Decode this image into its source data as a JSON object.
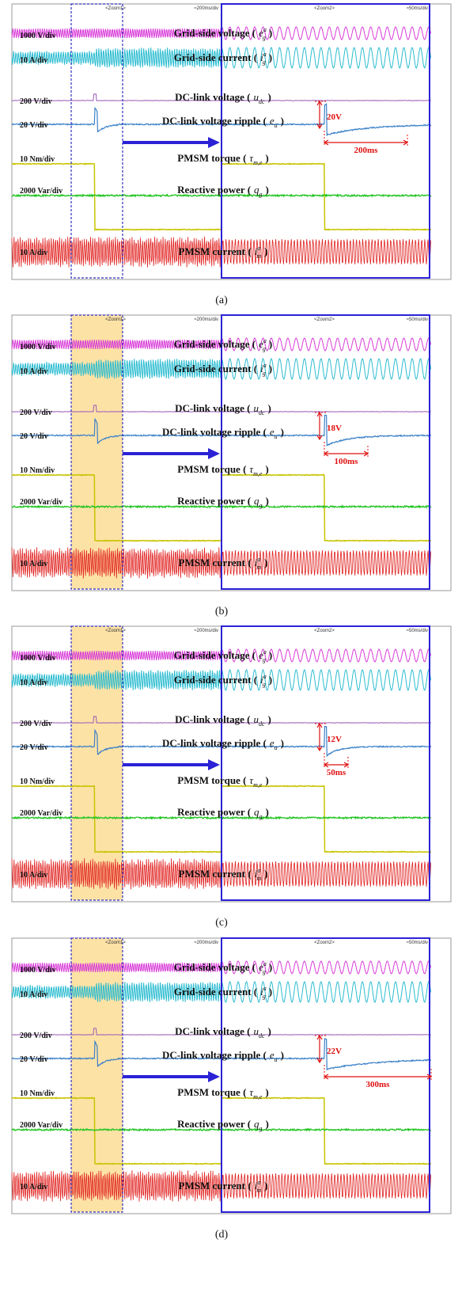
{
  "channels": [
    {
      "scale": "1000 V/div",
      "name": "Grid-side voltage (",
      "symbol": "e",
      "sub": "g",
      "sup": "a",
      "close": ")"
    },
    {
      "scale": "10 A/div",
      "name": "Grid-side current (",
      "symbol": "i",
      "sub": "g",
      "sup": "a",
      "close": ")"
    },
    {
      "scale": "200 V/div",
      "name": "DC-link voltage (",
      "symbol": "u",
      "sub": "dc",
      "sup": null,
      "close": ")"
    },
    {
      "scale": "20 V/div",
      "name": "DC-link voltage ripple (",
      "symbol": "e",
      "sub": "u",
      "sup": null,
      "close": ")"
    },
    {
      "scale": "10 Nm/div",
      "name": "PMSM torque (",
      "symbol": "τ",
      "sub": "m,e",
      "sup": null,
      "close": ")"
    },
    {
      "scale": "2000 Var/div",
      "name": "Reactive power (",
      "symbol": "q",
      "sub": "g",
      "sup": null,
      "close": ")"
    },
    {
      "scale": "10 A/div",
      "name": "PMSM current (",
      "symbol": "i",
      "sub": "m",
      "sup": "a",
      "close": ")"
    }
  ],
  "zoom1": "<Zoom1>",
  "zoom2": "<Zoom2>",
  "timebase_main": "≈200ms/div",
  "timebase_zoom": "≈50ms/div",
  "panels": [
    {
      "caption": "(a)",
      "ripple_label": "20V",
      "settle_label": "200ms"
    },
    {
      "caption": "(b)",
      "ripple_label": "18V",
      "settle_label": "100ms"
    },
    {
      "caption": "(c)",
      "ripple_label": "12V",
      "settle_label": "50ms"
    },
    {
      "caption": "(d)",
      "ripple_label": "22V",
      "settle_label": "300ms"
    }
  ]
}
